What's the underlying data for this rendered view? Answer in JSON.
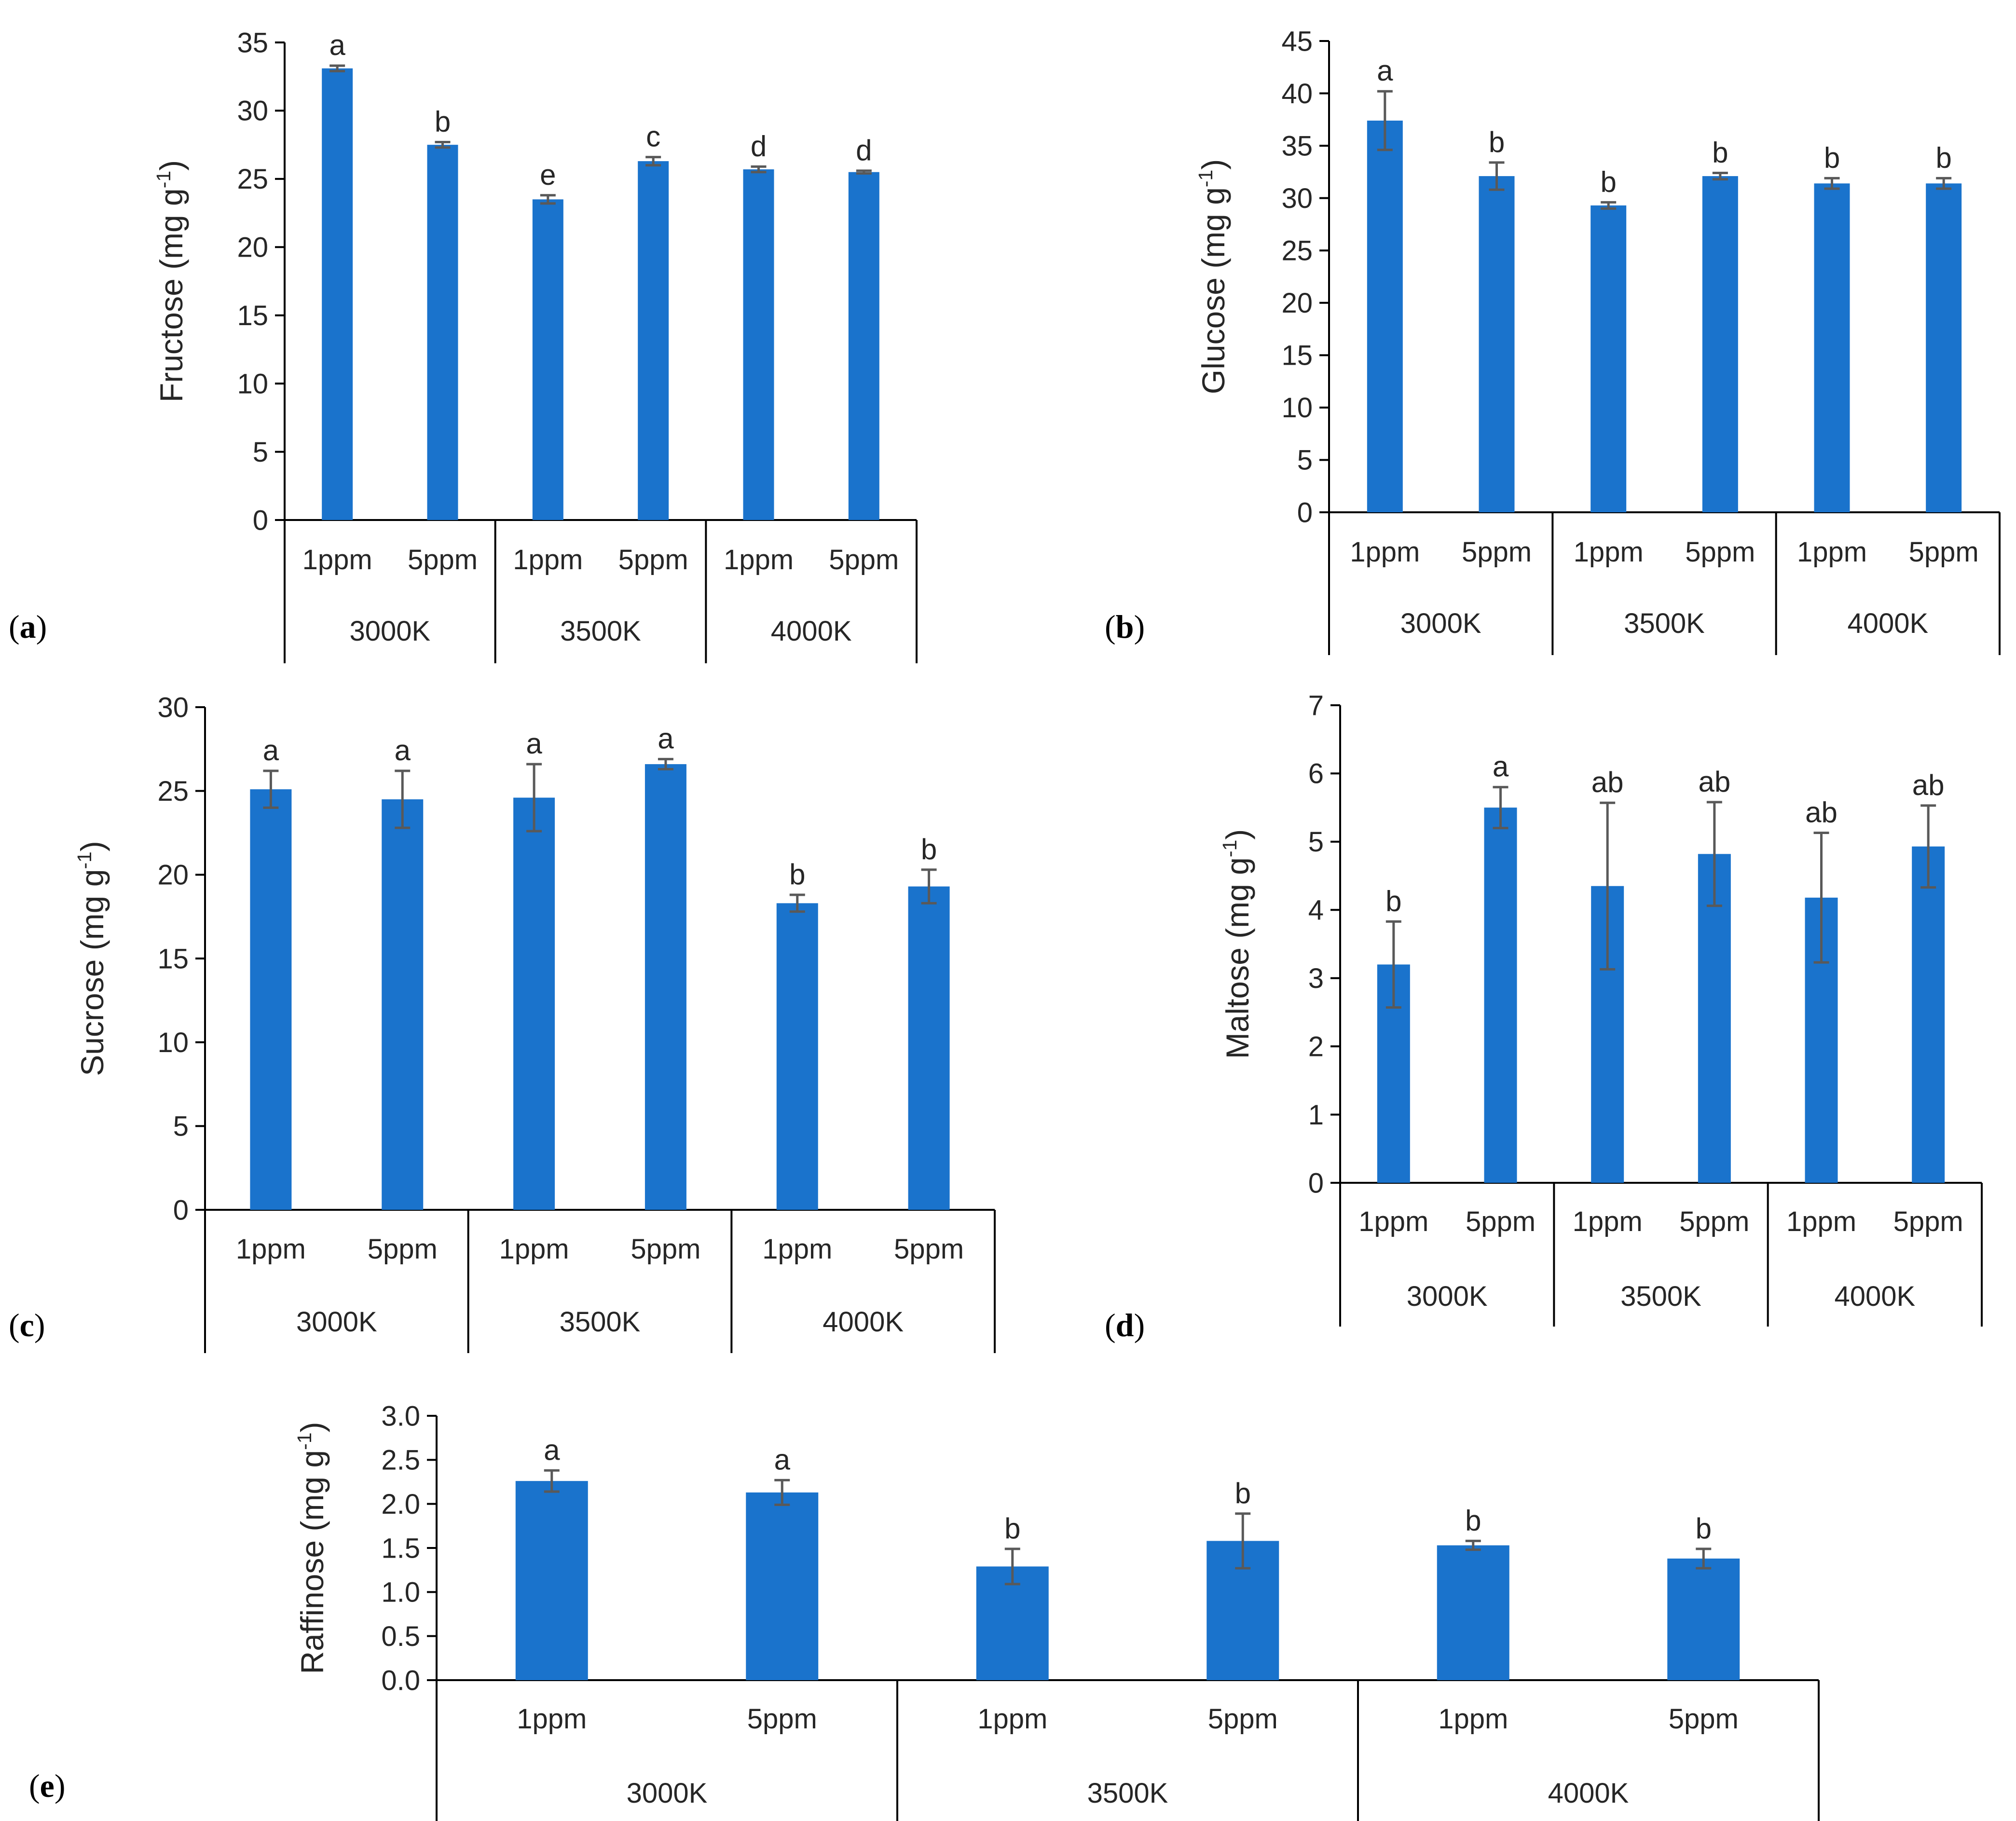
{
  "figure_name": "sugar-content-bar-charts",
  "colors": {
    "bar": "#1a73cc",
    "error_bar": "#595959",
    "axis": "#000000",
    "text": "#262626"
  },
  "chart_data": [
    {
      "id": "fructose",
      "panel_label": "(a)",
      "type": "bar",
      "ylabel": "Fructose (mg g-1)",
      "ylabel_main": "Fructose (mg g",
      "ylabel_sup": "-1",
      "ylabel_close": ")",
      "ylim": [
        0,
        35
      ],
      "yticks": [
        0,
        5,
        10,
        15,
        20,
        25,
        30,
        35
      ],
      "tick_decimals": 0,
      "categories": [
        "1ppm",
        "5ppm",
        "1ppm",
        "5ppm",
        "1ppm",
        "5ppm"
      ],
      "groups": [
        "3000K",
        "3500K",
        "4000K"
      ],
      "values": [
        33.1,
        27.5,
        23.5,
        26.3,
        25.7,
        25.5
      ],
      "errors": [
        0.2,
        0.2,
        0.3,
        0.3,
        0.2,
        0.1
      ],
      "letters": [
        "a",
        "b",
        "e",
        "c",
        "d",
        "d"
      ]
    },
    {
      "id": "glucose",
      "panel_label": "(b)",
      "type": "bar",
      "ylabel": "Glucose (mg g-1)",
      "ylabel_main": "Glucose (mg g",
      "ylabel_sup": "-1",
      "ylabel_close": ")",
      "ylim": [
        0,
        45
      ],
      "yticks": [
        0,
        5,
        10,
        15,
        20,
        25,
        30,
        35,
        40,
        45
      ],
      "tick_decimals": 0,
      "categories": [
        "1ppm",
        "5ppm",
        "1ppm",
        "5ppm",
        "1ppm",
        "5ppm"
      ],
      "groups": [
        "3000K",
        "3500K",
        "4000K"
      ],
      "values": [
        37.4,
        32.1,
        29.3,
        32.1,
        31.4,
        31.4
      ],
      "errors": [
        2.8,
        1.3,
        0.3,
        0.3,
        0.5,
        0.5
      ],
      "letters": [
        "a",
        "b",
        "b",
        "b",
        "b",
        "b"
      ]
    },
    {
      "id": "sucrose",
      "panel_label": "(c)",
      "type": "bar",
      "ylabel": "Sucrose (mg g-1)",
      "ylabel_main": "Sucrose (mg g",
      "ylabel_sup": "-1",
      "ylabel_close": ")",
      "ylim": [
        0,
        30
      ],
      "yticks": [
        0,
        5,
        10,
        15,
        20,
        25,
        30
      ],
      "tick_decimals": 0,
      "categories": [
        "1ppm",
        "5ppm",
        "1ppm",
        "5ppm",
        "1ppm",
        "5ppm"
      ],
      "groups": [
        "3000K",
        "3500K",
        "4000K"
      ],
      "values": [
        25.1,
        24.5,
        24.6,
        26.6,
        18.3,
        19.3
      ],
      "errors": [
        1.1,
        1.7,
        2.0,
        0.3,
        0.5,
        1.0
      ],
      "letters": [
        "a",
        "a",
        "a",
        "a",
        "b",
        "b"
      ]
    },
    {
      "id": "maltose",
      "panel_label": "(d)",
      "type": "bar",
      "ylabel": "Maltose (mg g-1)",
      "ylabel_main": "Maltose (mg g",
      "ylabel_sup": "-1",
      "ylabel_close": ")",
      "ylim": [
        0,
        7
      ],
      "yticks": [
        0,
        1,
        2,
        3,
        4,
        5,
        6,
        7
      ],
      "tick_decimals": 0,
      "categories": [
        "1ppm",
        "5ppm",
        "1ppm",
        "5ppm",
        "1ppm",
        "5ppm"
      ],
      "groups": [
        "3000K",
        "3500K",
        "4000K"
      ],
      "values": [
        3.2,
        5.5,
        4.35,
        4.82,
        4.18,
        4.93
      ],
      "errors": [
        0.63,
        0.3,
        1.22,
        0.76,
        0.95,
        0.6
      ],
      "letters": [
        "b",
        "a",
        "ab",
        "ab",
        "ab",
        "ab"
      ]
    },
    {
      "id": "raffinose",
      "panel_label": "(e)",
      "type": "bar",
      "ylabel": "Raffinose (mg g-1)",
      "ylabel_main": "Raffinose (mg g",
      "ylabel_sup": "-1",
      "ylabel_close": ")",
      "ylim": [
        0,
        3.0
      ],
      "yticks": [
        0.0,
        0.5,
        1.0,
        1.5,
        2.0,
        2.5,
        3.0
      ],
      "tick_decimals": 1,
      "categories": [
        "1ppm",
        "5ppm",
        "1ppm",
        "5ppm",
        "1ppm",
        "5ppm"
      ],
      "groups": [
        "3000K",
        "3500K",
        "4000K"
      ],
      "values": [
        2.26,
        2.13,
        1.29,
        1.58,
        1.53,
        1.38
      ],
      "errors": [
        0.12,
        0.14,
        0.2,
        0.31,
        0.05,
        0.11
      ],
      "letters": [
        "a",
        "a",
        "b",
        "b",
        "b",
        "b"
      ]
    }
  ]
}
